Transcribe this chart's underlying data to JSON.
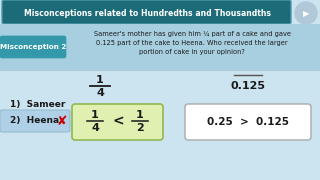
{
  "bg_color": "#cce4f0",
  "title_text": "Misconceptions related to Hundredths and Thousandths",
  "title_bg": "#1c6b78",
  "title_fg": "#ffffff",
  "title_border": "#4a9aaa",
  "misconception_label": "Misconception 2",
  "misconception_bg": "#3399aa",
  "misconception_fg": "#ffffff",
  "question_text": "Sameer's mother has given him ¼ part of a cake and gave\n0.125 part of the cake to Heena. Who received the larger\nportion of cake in your opinion?",
  "frac_num": "1",
  "frac_den": "4",
  "decimal_text": "0.125",
  "sameer_label": "1)  Sameer",
  "heena_label": "2)  Heena",
  "box1_bg": "#dff0b0",
  "box1_border": "#90b850",
  "box2_bg": "#ffffff",
  "box2_border": "#aaaaaa",
  "cross_color": "#cc0000",
  "heena_box_bg": "#b0d0e8",
  "heena_box_border": "#90b8cc",
  "separator_color": "#aaccdd",
  "fraction_color": "#1a1a1a",
  "text_color": "#1a1a1a",
  "overline_color": "#555555"
}
